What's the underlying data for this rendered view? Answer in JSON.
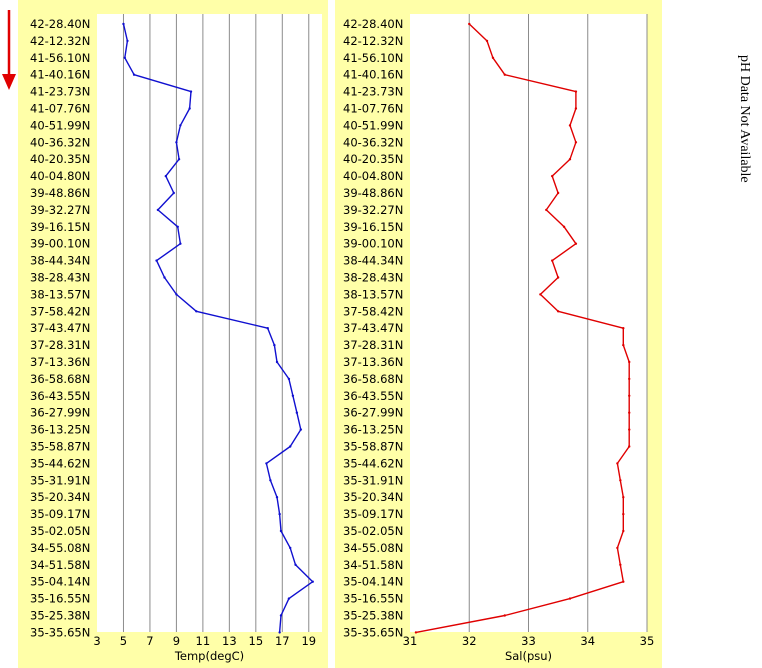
{
  "annotation": {
    "text": "pH Data Not Available",
    "arrow_color": "#e00000"
  },
  "latitudes": [
    "42-28.40N",
    "42-12.32N",
    "41-56.10N",
    "41-40.16N",
    "41-23.73N",
    "41-07.76N",
    "40-51.99N",
    "40-36.32N",
    "40-20.35N",
    "40-04.80N",
    "39-48.86N",
    "39-32.27N",
    "39-16.15N",
    "39-00.10N",
    "38-44.34N",
    "38-28.43N",
    "38-13.57N",
    "37-58.42N",
    "37-43.47N",
    "37-28.31N",
    "37-13.36N",
    "36-58.68N",
    "36-43.55N",
    "36-27.99N",
    "36-13.25N",
    "35-58.87N",
    "35-44.62N",
    "35-31.91N",
    "35-20.34N",
    "35-09.17N",
    "35-02.05N",
    "34-55.08N",
    "34-51.58N",
    "35-04.14N",
    "35-16.55N",
    "35-25.38N",
    "35-35.65N"
  ],
  "chart_data": [
    {
      "type": "line",
      "xlabel": "Temp(degC)",
      "xlim": [
        3,
        20
      ],
      "xticks": [
        3,
        5,
        7,
        9,
        11,
        13,
        15,
        17,
        19
      ],
      "color": "#1010d0",
      "y": [
        "42-28.40N",
        "42-12.32N",
        "41-56.10N",
        "41-40.16N",
        "41-23.73N",
        "41-07.76N",
        "40-51.99N",
        "40-36.32N",
        "40-20.35N",
        "40-04.80N",
        "39-48.86N",
        "39-32.27N",
        "39-16.15N",
        "39-00.10N",
        "38-44.34N",
        "38-28.43N",
        "38-13.57N",
        "37-58.42N",
        "37-43.47N",
        "37-28.31N",
        "37-13.36N",
        "36-58.68N",
        "36-43.55N",
        "36-27.99N",
        "36-13.25N",
        "35-58.87N",
        "35-44.62N",
        "35-31.91N",
        "35-20.34N",
        "35-09.17N",
        "35-02.05N",
        "34-55.08N",
        "34-51.58N",
        "35-04.14N",
        "35-16.55N",
        "35-25.38N",
        "35-35.65N"
      ],
      "values": [
        5.0,
        5.3,
        5.1,
        5.8,
        10.1,
        10.0,
        9.3,
        9.0,
        9.2,
        8.2,
        8.8,
        7.6,
        9.1,
        9.3,
        7.5,
        8.1,
        9.0,
        10.5,
        15.9,
        16.4,
        16.6,
        17.5,
        17.8,
        18.1,
        18.4,
        17.6,
        15.8,
        16.1,
        16.6,
        16.8,
        16.9,
        17.6,
        18.0,
        19.3,
        17.5,
        16.9,
        16.8
      ]
    },
    {
      "type": "line",
      "xlabel": "Sal(psu)",
      "xlim": [
        31,
        35
      ],
      "xticks": [
        31,
        32,
        33,
        34,
        35
      ],
      "color": "#e00000",
      "y": [
        "42-28.40N",
        "42-12.32N",
        "41-56.10N",
        "41-40.16N",
        "41-23.73N",
        "41-07.76N",
        "40-51.99N",
        "40-36.32N",
        "40-20.35N",
        "40-04.80N",
        "39-48.86N",
        "39-32.27N",
        "39-16.15N",
        "39-00.10N",
        "38-44.34N",
        "38-28.43N",
        "38-13.57N",
        "37-58.42N",
        "37-43.47N",
        "37-28.31N",
        "37-13.36N",
        "36-58.68N",
        "36-43.55N",
        "36-27.99N",
        "36-13.25N",
        "35-58.87N",
        "35-44.62N",
        "35-31.91N",
        "35-20.34N",
        "35-09.17N",
        "35-02.05N",
        "34-55.08N",
        "34-51.58N",
        "35-04.14N",
        "35-16.55N",
        "35-25.38N",
        "35-35.65N"
      ],
      "values": [
        32.0,
        32.3,
        32.4,
        32.6,
        33.8,
        33.8,
        33.7,
        33.8,
        33.7,
        33.4,
        33.5,
        33.3,
        33.6,
        33.8,
        33.4,
        33.5,
        33.2,
        33.5,
        34.6,
        34.6,
        34.7,
        34.7,
        34.7,
        34.7,
        34.7,
        34.7,
        34.5,
        34.55,
        34.6,
        34.6,
        34.6,
        34.5,
        34.55,
        34.6,
        33.7,
        32.6,
        31.1
      ]
    }
  ]
}
